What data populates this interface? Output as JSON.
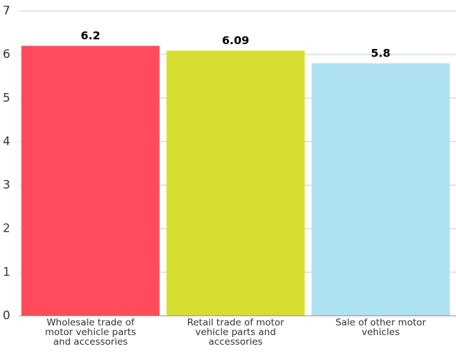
{
  "chart_data": {
    "type": "bar",
    "categories": [
      "Wholesale trade of motor vehicle parts and accessories",
      "Retail trade of motor vehicle parts and accessories",
      "Sale of other motor vehicles"
    ],
    "values": [
      6.2,
      6.09,
      5.8
    ],
    "colors": [
      "#ff4b5a",
      "#d6df30",
      "#aee1f2"
    ],
    "ylim": [
      0,
      7
    ],
    "yticks": [
      0,
      1,
      2,
      3,
      4,
      5,
      6,
      7
    ],
    "grid": true
  }
}
